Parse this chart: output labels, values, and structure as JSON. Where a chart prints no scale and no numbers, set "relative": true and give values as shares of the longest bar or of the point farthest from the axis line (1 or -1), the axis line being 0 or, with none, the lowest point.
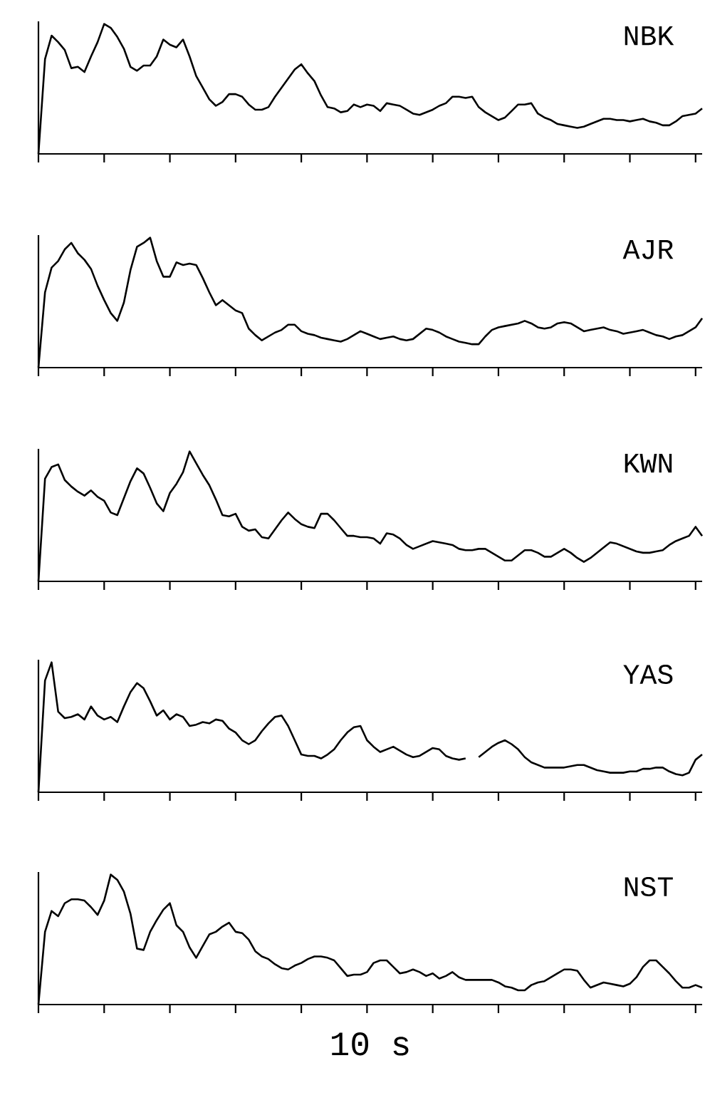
{
  "chart_data": [
    {
      "type": "line",
      "relative": true,
      "legend": false,
      "categories": [
        null,
        null,
        null,
        null,
        null,
        null,
        null,
        null,
        null,
        null,
        null,
        null,
        null,
        null,
        null,
        null,
        null,
        null,
        null,
        null,
        null,
        null,
        null,
        null,
        null,
        null,
        null,
        null,
        null,
        null,
        null,
        null,
        null,
        null,
        null,
        null,
        null,
        null,
        null,
        null,
        null,
        null,
        null,
        null,
        null,
        null,
        null,
        null,
        null,
        null,
        null,
        null,
        null,
        null,
        null,
        null,
        null,
        null,
        null,
        null,
        null,
        null,
        null,
        null,
        null,
        null,
        null,
        null,
        null,
        null,
        null,
        null,
        null,
        null,
        null,
        null,
        null,
        null,
        null,
        null,
        null,
        null,
        null,
        null,
        null,
        null,
        null,
        null,
        null,
        null,
        null,
        null,
        null,
        null,
        null,
        null,
        null,
        null,
        null,
        null,
        null,
        null
      ],
      "series": [
        {
          "name": "NBK",
          "color": "#000000",
          "values": [
            0,
            0.73,
            0.91,
            0.86,
            0.8,
            0.66,
            0.67,
            0.63,
            0.75,
            0.86,
            1.0,
            0.97,
            0.9,
            0.81,
            0.67,
            0.64,
            0.68,
            0.68,
            0.75,
            0.88,
            0.84,
            0.82,
            0.88,
            0.75,
            0.6,
            0.51,
            0.42,
            0.37,
            0.4,
            0.46,
            0.46,
            0.44,
            0.38,
            0.34,
            0.34,
            0.36,
            0.44,
            0.51,
            0.58,
            0.65,
            0.69,
            0.62,
            0.56,
            0.45,
            0.36,
            0.35,
            0.32,
            0.33,
            0.38,
            0.36,
            0.38,
            0.37,
            0.33,
            0.39,
            0.38,
            0.37,
            0.34,
            0.31,
            0.3,
            0.32,
            0.34,
            0.37,
            0.39,
            0.44,
            0.44,
            0.43,
            0.44,
            0.36,
            0.32,
            0.29,
            0.26,
            0.28,
            0.33,
            0.38,
            0.38,
            0.39,
            0.31,
            0.28,
            0.26,
            0.23,
            0.22,
            0.21,
            0.2,
            0.21,
            0.23,
            0.25,
            0.27,
            0.27,
            0.26,
            0.26,
            0.25,
            0.26,
            0.27,
            0.25,
            0.24,
            0.22,
            0.22,
            0.25,
            0.29,
            0.3,
            0.31,
            0.35
          ]
        }
      ]
    },
    {
      "type": "line",
      "relative": true,
      "legend": false,
      "categories": [
        null,
        null,
        null,
        null,
        null,
        null,
        null,
        null,
        null,
        null,
        null,
        null,
        null,
        null,
        null,
        null,
        null,
        null,
        null,
        null,
        null,
        null,
        null,
        null,
        null,
        null,
        null,
        null,
        null,
        null,
        null,
        null,
        null,
        null,
        null,
        null,
        null,
        null,
        null,
        null,
        null,
        null,
        null,
        null,
        null,
        null,
        null,
        null,
        null,
        null,
        null,
        null,
        null,
        null,
        null,
        null,
        null,
        null,
        null,
        null,
        null,
        null,
        null,
        null,
        null,
        null,
        null,
        null,
        null,
        null,
        null,
        null,
        null,
        null,
        null,
        null,
        null,
        null,
        null,
        null,
        null,
        null,
        null,
        null,
        null,
        null,
        null,
        null,
        null,
        null,
        null,
        null,
        null,
        null,
        null,
        null,
        null,
        null,
        null,
        null,
        null,
        null
      ],
      "series": [
        {
          "name": "AJR",
          "color": "#000000",
          "values": [
            0,
            0.58,
            0.77,
            0.82,
            0.91,
            0.96,
            0.88,
            0.83,
            0.76,
            0.63,
            0.52,
            0.42,
            0.36,
            0.5,
            0.75,
            0.93,
            0.96,
            1.0,
            0.82,
            0.7,
            0.7,
            0.81,
            0.79,
            0.8,
            0.79,
            0.69,
            0.58,
            0.48,
            0.52,
            0.48,
            0.44,
            0.42,
            0.3,
            0.25,
            0.21,
            0.24,
            0.27,
            0.29,
            0.33,
            0.33,
            0.28,
            0.26,
            0.25,
            0.23,
            0.22,
            0.21,
            0.2,
            0.22,
            0.25,
            0.28,
            0.26,
            0.24,
            0.22,
            0.23,
            0.24,
            0.22,
            0.21,
            0.22,
            0.26,
            0.3,
            0.29,
            0.27,
            0.24,
            0.22,
            0.2,
            0.19,
            0.18,
            0.18,
            0.24,
            0.29,
            0.31,
            0.32,
            0.33,
            0.34,
            0.36,
            0.34,
            0.31,
            0.3,
            0.31,
            0.34,
            0.35,
            0.34,
            0.31,
            0.28,
            0.29,
            0.3,
            0.31,
            0.29,
            0.28,
            0.26,
            0.27,
            0.28,
            0.29,
            0.27,
            0.25,
            0.24,
            0.22,
            0.24,
            0.25,
            0.28,
            0.31,
            0.38
          ]
        }
      ]
    },
    {
      "type": "line",
      "relative": true,
      "legend": false,
      "categories": [
        null,
        null,
        null,
        null,
        null,
        null,
        null,
        null,
        null,
        null,
        null,
        null,
        null,
        null,
        null,
        null,
        null,
        null,
        null,
        null,
        null,
        null,
        null,
        null,
        null,
        null,
        null,
        null,
        null,
        null,
        null,
        null,
        null,
        null,
        null,
        null,
        null,
        null,
        null,
        null,
        null,
        null,
        null,
        null,
        null,
        null,
        null,
        null,
        null,
        null,
        null,
        null,
        null,
        null,
        null,
        null,
        null,
        null,
        null,
        null,
        null,
        null,
        null,
        null,
        null,
        null,
        null,
        null,
        null,
        null,
        null,
        null,
        null,
        null,
        null,
        null,
        null,
        null,
        null,
        null,
        null,
        null,
        null,
        null,
        null,
        null,
        null,
        null,
        null,
        null,
        null,
        null,
        null,
        null,
        null,
        null,
        null,
        null,
        null,
        null,
        null,
        null
      ],
      "series": [
        {
          "name": "KWN",
          "color": "#000000",
          "values": [
            0,
            0.79,
            0.88,
            0.9,
            0.78,
            0.73,
            0.69,
            0.66,
            0.7,
            0.65,
            0.62,
            0.53,
            0.51,
            0.64,
            0.77,
            0.87,
            0.83,
            0.72,
            0.6,
            0.54,
            0.68,
            0.75,
            0.84,
            1.0,
            0.91,
            0.82,
            0.74,
            0.63,
            0.51,
            0.5,
            0.52,
            0.42,
            0.39,
            0.4,
            0.34,
            0.33,
            0.4,
            0.47,
            0.53,
            0.48,
            0.44,
            0.42,
            0.41,
            0.52,
            0.52,
            0.47,
            0.41,
            0.35,
            0.35,
            0.34,
            0.34,
            0.33,
            0.29,
            0.37,
            0.36,
            0.33,
            0.28,
            0.25,
            0.27,
            0.29,
            0.31,
            0.3,
            0.29,
            0.28,
            0.25,
            0.24,
            0.24,
            0.25,
            0.25,
            0.22,
            0.19,
            0.16,
            0.16,
            0.2,
            0.24,
            0.24,
            0.22,
            0.19,
            0.19,
            0.22,
            0.25,
            0.22,
            0.18,
            0.15,
            0.18,
            0.22,
            0.26,
            0.3,
            0.29,
            0.27,
            0.25,
            0.23,
            0.22,
            0.22,
            0.23,
            0.24,
            0.28,
            0.31,
            0.33,
            0.35,
            0.42,
            0.35
          ]
        }
      ]
    },
    {
      "type": "line",
      "relative": true,
      "legend": false,
      "categories": [
        null,
        null,
        null,
        null,
        null,
        null,
        null,
        null,
        null,
        null,
        null,
        null,
        null,
        null,
        null,
        null,
        null,
        null,
        null,
        null,
        null,
        null,
        null,
        null,
        null,
        null,
        null,
        null,
        null,
        null,
        null,
        null,
        null,
        null,
        null,
        null,
        null,
        null,
        null,
        null,
        null,
        null,
        null,
        null,
        null,
        null,
        null,
        null,
        null,
        null,
        null,
        null,
        null,
        null,
        null,
        null,
        null,
        null,
        null,
        null,
        null,
        null,
        null,
        null,
        null,
        null,
        null,
        null,
        null,
        null,
        null,
        null,
        null,
        null,
        null,
        null,
        null,
        null,
        null,
        null,
        null,
        null,
        null,
        null,
        null,
        null,
        null,
        null,
        null,
        null,
        null,
        null,
        null,
        null,
        null,
        null,
        null,
        null,
        null,
        null,
        null,
        null
      ],
      "series": [
        {
          "name": "YAS",
          "color": "#000000",
          "values": [
            0,
            0.86,
            1.0,
            0.62,
            0.57,
            0.58,
            0.6,
            0.56,
            0.66,
            0.59,
            0.56,
            0.58,
            0.54,
            0.66,
            0.77,
            0.84,
            0.8,
            0.7,
            0.59,
            0.63,
            0.56,
            0.6,
            0.58,
            0.51,
            0.52,
            0.54,
            0.53,
            0.56,
            0.55,
            0.49,
            0.46,
            0.4,
            0.37,
            0.4,
            0.47,
            0.53,
            0.58,
            0.59,
            0.51,
            0.4,
            0.29,
            0.28,
            0.28,
            0.26,
            0.29,
            0.33,
            0.4,
            0.46,
            0.5,
            0.51,
            0.4,
            0.35,
            0.31,
            0.33,
            0.35,
            0.32,
            0.29,
            0.27,
            0.28,
            0.31,
            0.34,
            0.33,
            0.28,
            0.26,
            0.25,
            0.26,
            null,
            0.27,
            0.31,
            0.35,
            0.38,
            0.4,
            0.37,
            0.33,
            0.27,
            0.23,
            0.21,
            0.19,
            0.19,
            0.19,
            0.19,
            0.2,
            0.21,
            0.21,
            0.19,
            0.17,
            0.16,
            0.15,
            0.15,
            0.15,
            0.16,
            0.16,
            0.18,
            0.18,
            0.19,
            0.19,
            0.16,
            0.14,
            0.13,
            0.15,
            0.25,
            0.29
          ]
        }
      ]
    },
    {
      "type": "line",
      "relative": true,
      "legend": false,
      "xlabel": "10 s",
      "categories": [
        null,
        null,
        null,
        null,
        null,
        null,
        null,
        null,
        null,
        null,
        null,
        null,
        null,
        null,
        null,
        null,
        null,
        null,
        null,
        null,
        null,
        null,
        null,
        null,
        null,
        null,
        null,
        null,
        null,
        null,
        null,
        null,
        null,
        null,
        null,
        null,
        null,
        null,
        null,
        null,
        null,
        null,
        null,
        null,
        null,
        null,
        null,
        null,
        null,
        null,
        null,
        null,
        null,
        null,
        null,
        null,
        null,
        null,
        null,
        null,
        null,
        null,
        null,
        null,
        null,
        null,
        null,
        null,
        null,
        null,
        null,
        null,
        null,
        null,
        null,
        null,
        null,
        null,
        null,
        null,
        null,
        null,
        null,
        null,
        null,
        null,
        null,
        null,
        null,
        null,
        null,
        null,
        null,
        null,
        null,
        null,
        null,
        null,
        null,
        null,
        null,
        null
      ],
      "series": [
        {
          "name": "NST",
          "color": "#000000",
          "values": [
            0,
            0.56,
            0.72,
            0.68,
            0.78,
            0.81,
            0.81,
            0.8,
            0.75,
            0.69,
            0.8,
            1.0,
            0.96,
            0.87,
            0.7,
            0.43,
            0.42,
            0.56,
            0.65,
            0.73,
            0.78,
            0.61,
            0.56,
            0.44,
            0.36,
            0.45,
            0.54,
            0.56,
            0.6,
            0.63,
            0.56,
            0.55,
            0.5,
            0.41,
            0.37,
            0.35,
            0.31,
            0.28,
            0.27,
            0.3,
            0.32,
            0.35,
            0.37,
            0.37,
            0.36,
            0.34,
            0.28,
            0.22,
            0.23,
            0.23,
            0.25,
            0.32,
            0.34,
            0.34,
            0.29,
            0.24,
            0.25,
            0.27,
            0.25,
            0.22,
            0.24,
            0.2,
            0.22,
            0.25,
            0.21,
            0.19,
            0.19,
            0.19,
            0.19,
            0.19,
            0.17,
            0.14,
            0.13,
            0.11,
            0.11,
            0.15,
            0.17,
            0.18,
            0.21,
            0.24,
            0.27,
            0.27,
            0.26,
            0.19,
            0.13,
            0.15,
            0.17,
            0.16,
            0.15,
            0.14,
            0.16,
            0.21,
            0.29,
            0.34,
            0.34,
            0.29,
            0.24,
            0.18,
            0.13,
            0.13,
            0.15,
            0.13
          ]
        }
      ]
    }
  ]
}
